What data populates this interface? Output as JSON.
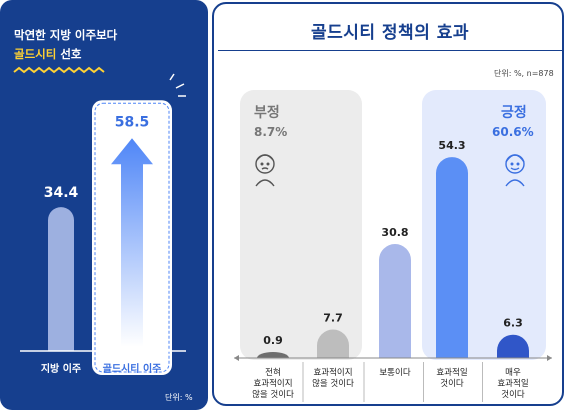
{
  "colors": {
    "navy": "#163f8e",
    "accent_yellow": "#ffd233",
    "positive_blue": "#3a6fe0",
    "negative_gray": "#777777"
  },
  "left_panel": {
    "headline_line1": "막연한 지방 이주보다",
    "headline_highlight": "골드시티",
    "headline_rest": " 선호",
    "unit": "단위: %"
  },
  "right_panel": {
    "title": "골드시티 정책의 효과",
    "note": "단위: %, n=878",
    "negative_group": {
      "title": "부정",
      "percent": "8.7%"
    },
    "positive_group": {
      "title": "긍정",
      "percent": "60.6%"
    }
  },
  "chart_data": [
    {
      "type": "bar",
      "categories": [
        "지방 이주",
        "골드시티 이주"
      ],
      "values": [
        34.4,
        58.5
      ],
      "value_labels": [
        "34.4",
        "58.5"
      ],
      "ylim": [
        0,
        60
      ]
    },
    {
      "type": "bar",
      "title": "골드시티 정책의 효과",
      "categories": [
        "전혀\n효과적이지\n않을 것이다",
        "효과적이지\n않을 것이다",
        "보통이다",
        "효과적일\n것이다",
        "매우\n효과적일\n것이다"
      ],
      "values": [
        0.9,
        7.7,
        30.8,
        54.3,
        6.3
      ],
      "value_labels": [
        "0.9",
        "7.7",
        "30.8",
        "54.3",
        "6.3"
      ],
      "ylim": [
        0,
        60
      ],
      "bar_colors": [
        "#6e6e6e",
        "#bdbdbd",
        "#a9b8ea",
        "#5b8ff5",
        "#3056c8"
      ]
    }
  ]
}
